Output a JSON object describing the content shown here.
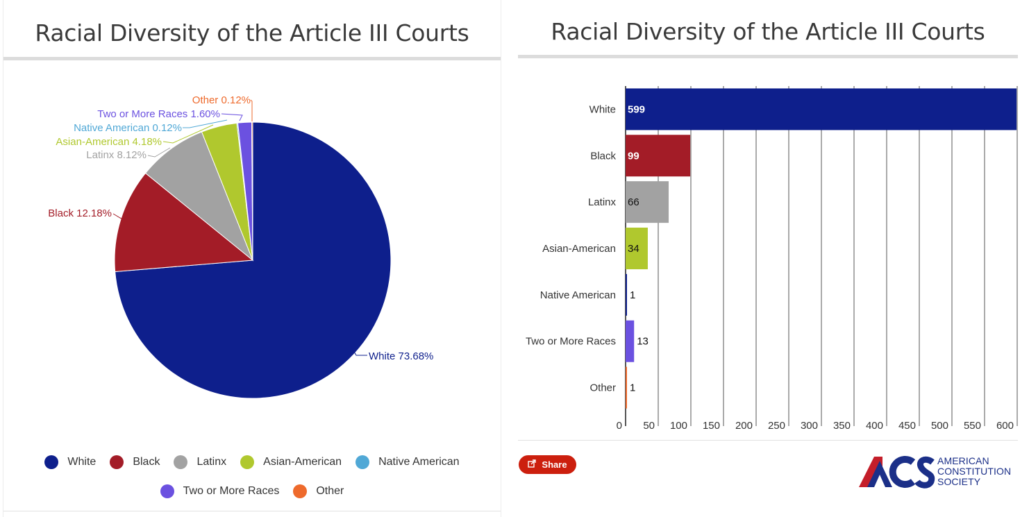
{
  "left": {
    "title": "Racial Diversity of the Article III Courts",
    "legend": [
      {
        "label": "White",
        "color": "#0e1f8c"
      },
      {
        "label": "Black",
        "color": "#a31c27"
      },
      {
        "label": "Latinx",
        "color": "#a2a2a2"
      },
      {
        "label": "Asian-American",
        "color": "#b0c82e"
      },
      {
        "label": "Native American",
        "color": "#50a8d6"
      },
      {
        "label": "Two or More Races",
        "color": "#6b51e0"
      },
      {
        "label": "Other",
        "color": "#ee6a2c"
      }
    ]
  },
  "right": {
    "title": "Racial Diversity of the Article III Courts",
    "share_label": "Share",
    "share_icon": "share-icon",
    "logo": {
      "mark": "ACS",
      "lines": [
        "AMERICAN",
        "CONSTITUTION",
        "SOCIETY"
      ]
    }
  },
  "chart_data": [
    {
      "type": "pie",
      "title": "Racial Diversity of the Article III Courts",
      "categories": [
        "White",
        "Black",
        "Latinx",
        "Asian-American",
        "Native American",
        "Two or More Races",
        "Other"
      ],
      "values": [
        73.68,
        12.18,
        8.12,
        4.18,
        0.12,
        1.6,
        0.12
      ],
      "labels": [
        "White 73.68%",
        "Black 12.18%",
        "Latinx 8.12%",
        "Asian-American 4.18%",
        "Native American 0.12%",
        "Two or More Races 1.60%",
        "Other 0.12%"
      ],
      "colors": [
        "#0e1f8c",
        "#a31c27",
        "#a2a2a2",
        "#b0c82e",
        "#50a8d6",
        "#6b51e0",
        "#ee6a2c"
      ],
      "legend": "bottom"
    },
    {
      "type": "bar",
      "orientation": "horizontal",
      "title": "Racial Diversity of the Article III Courts",
      "categories": [
        "White",
        "Black",
        "Latinx",
        "Asian-American",
        "Native American",
        "Two or More Races",
        "Other"
      ],
      "values": [
        599,
        99,
        66,
        34,
        1,
        13,
        1
      ],
      "colors": [
        "#0e1f8c",
        "#a31c27",
        "#a2a2a2",
        "#b0c82e",
        "#0e1f8c",
        "#6b51e0",
        "#ee6a2c"
      ],
      "xlim": [
        0,
        600
      ],
      "xticks": [
        0,
        50,
        100,
        150,
        200,
        250,
        300,
        350,
        400,
        450,
        500,
        550,
        600
      ],
      "grid": true
    }
  ]
}
